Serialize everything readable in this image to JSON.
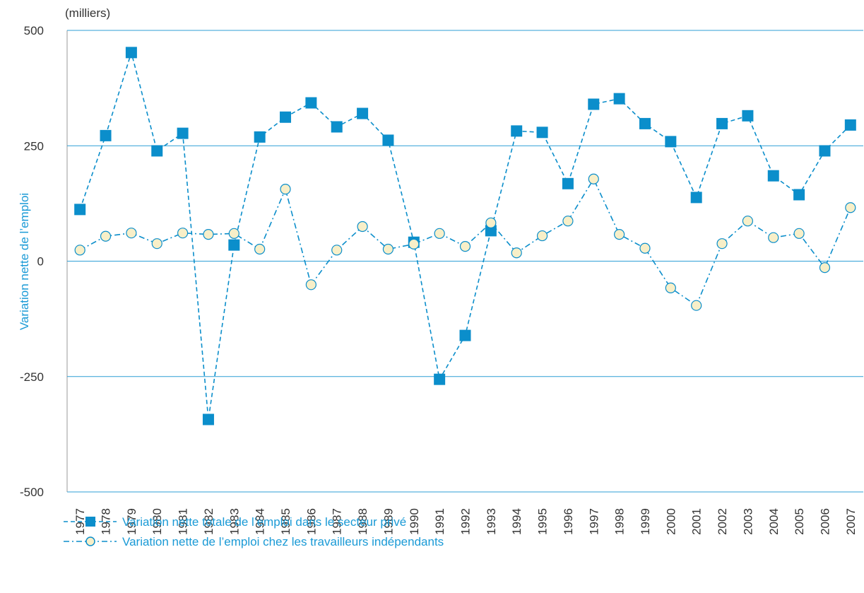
{
  "chart_data": {
    "type": "line",
    "unit_label": "(milliers)",
    "y_label": "Variation nette de l’emploi",
    "categories": [
      "1977",
      "1978",
      "1979",
      "1980",
      "1981",
      "1982",
      "1983",
      "1984",
      "1985",
      "1986",
      "1987",
      "1988",
      "1989",
      "1990",
      "1991",
      "1992",
      "1993",
      "1994",
      "1995",
      "1996",
      "1997",
      "1998",
      "1999",
      "2000",
      "2001",
      "2002",
      "2003",
      "2004",
      "2005",
      "2006",
      "2007"
    ],
    "series": [
      {
        "name": "Variation nette totale de l’emploi dans le secteur privé",
        "color": "#0b8ecb",
        "marker": "square",
        "line_style": "dashed",
        "values": [
          112,
          272,
          452,
          239,
          277,
          -343,
          35,
          269,
          312,
          343,
          291,
          320,
          262,
          41,
          -256,
          -161,
          66,
          282,
          279,
          168,
          340,
          352,
          298,
          259,
          138,
          298,
          315,
          185,
          144,
          239,
          295
        ]
      },
      {
        "name": "Variation nette de l’emploi chez les travailleurs indépendants",
        "color": "#0b8ecb",
        "marker_fill": "#f8efc8",
        "marker": "circle",
        "line_style": "dashdot",
        "values": [
          24,
          54,
          61,
          38,
          61,
          58,
          60,
          26,
          156,
          -51,
          24,
          75,
          26,
          37,
          60,
          32,
          83,
          18,
          55,
          87,
          178,
          58,
          28,
          -58,
          -96,
          38,
          87,
          51,
          60,
          -14,
          116
        ]
      }
    ],
    "ylim": [
      -500,
      500
    ],
    "yticks": [
      -500,
      -250,
      0,
      250,
      500
    ],
    "grid": true
  }
}
